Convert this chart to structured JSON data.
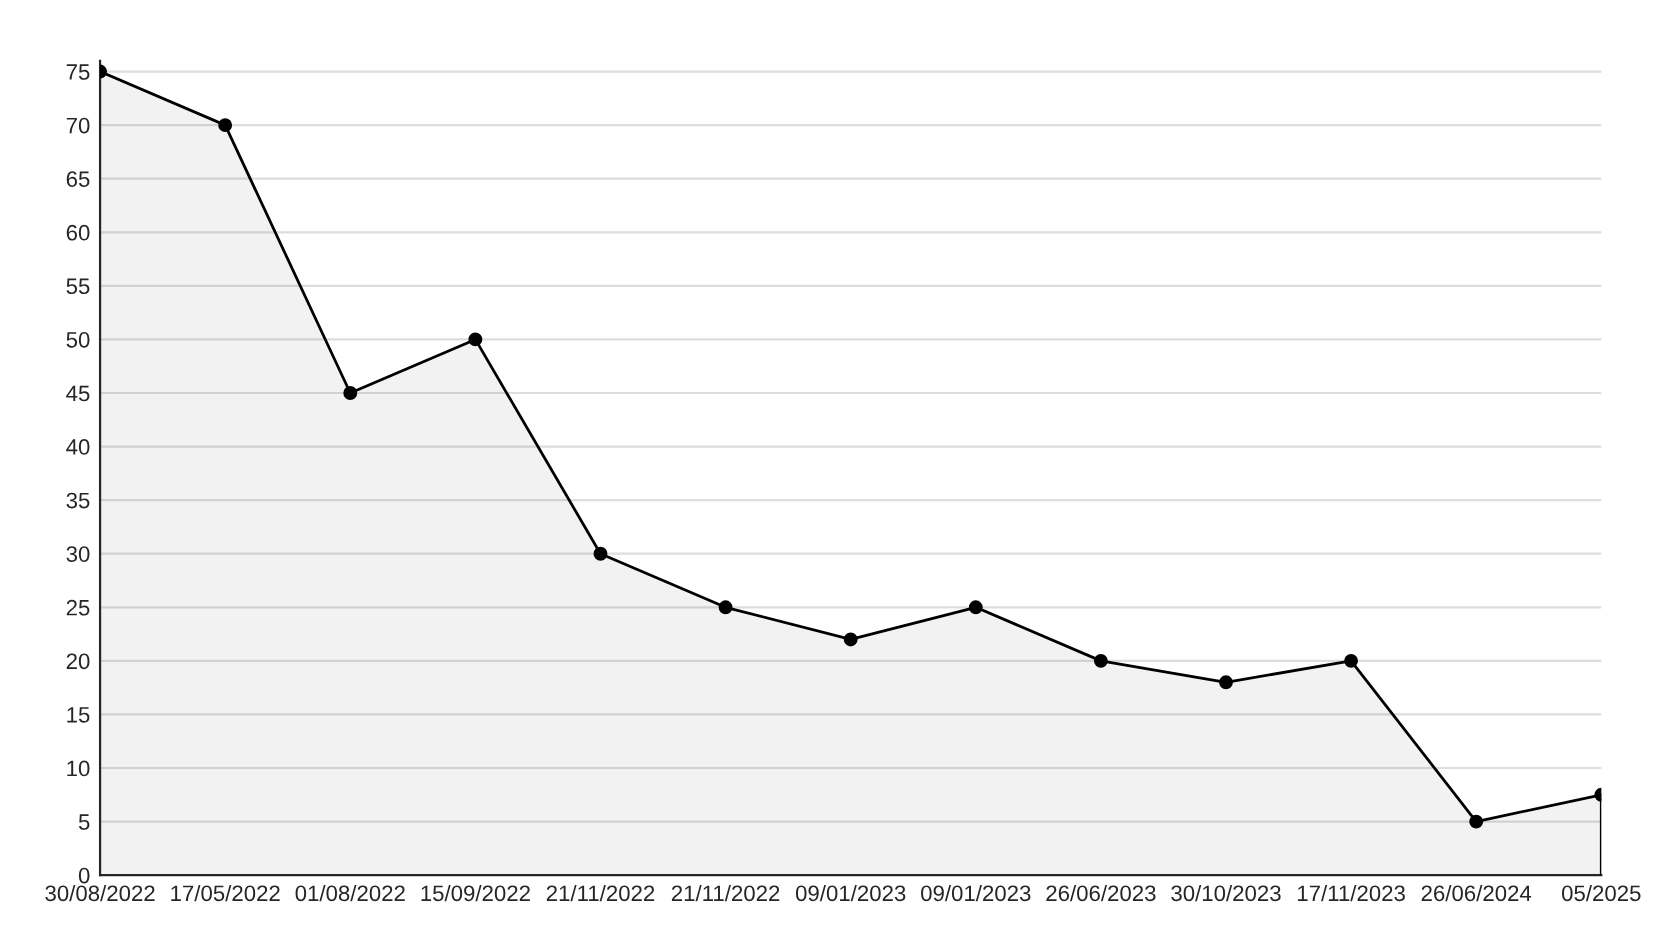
{
  "chart_data": {
    "type": "area",
    "categories": [
      "30/08/2022",
      "17/05/2022",
      "01/08/2022",
      "15/09/2022",
      "21/11/2022",
      "21/11/2022",
      "09/01/2023",
      "09/01/2023",
      "26/06/2023",
      "30/10/2023",
      "17/11/2023",
      "26/06/2024",
      "05/2025"
    ],
    "series": [
      {
        "color": "#000000",
        "values": [
          75,
          70,
          45,
          50,
          30,
          25,
          22,
          25,
          20,
          18,
          20,
          5,
          7.5
        ]
      }
    ],
    "ylim": [
      0,
      76
    ],
    "yticks": [
      0,
      5,
      10,
      15,
      20,
      25,
      30,
      35,
      40,
      45,
      50,
      55,
      60,
      65,
      70,
      75
    ],
    "grid": "y",
    "marker": "circle",
    "line_style": "solid"
  }
}
